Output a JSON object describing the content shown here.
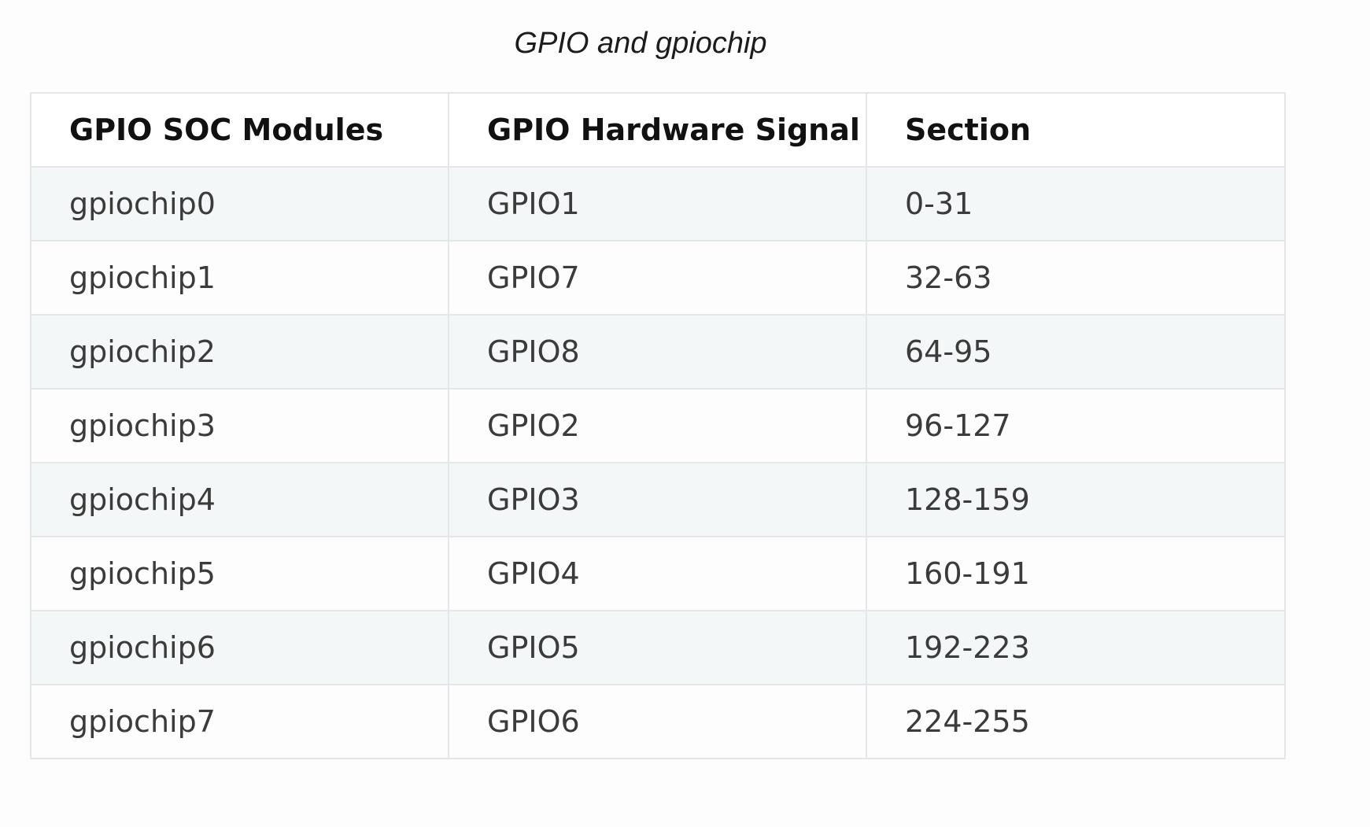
{
  "caption": "GPIO and gpiochip",
  "table": {
    "headers": [
      "GPIO SOC Modules",
      "GPIO Hardware Signal",
      "Section"
    ],
    "rows": [
      [
        "gpiochip0",
        "GPIO1",
        "0-31"
      ],
      [
        "gpiochip1",
        "GPIO7",
        "32-63"
      ],
      [
        "gpiochip2",
        "GPIO8",
        "64-95"
      ],
      [
        "gpiochip3",
        "GPIO2",
        "96-127"
      ],
      [
        "gpiochip4",
        "GPIO3",
        "128-159"
      ],
      [
        "gpiochip5",
        "GPIO4",
        "160-191"
      ],
      [
        "gpiochip6",
        "GPIO5",
        "192-223"
      ],
      [
        "gpiochip7",
        "GPIO6",
        "224-255"
      ]
    ]
  }
}
